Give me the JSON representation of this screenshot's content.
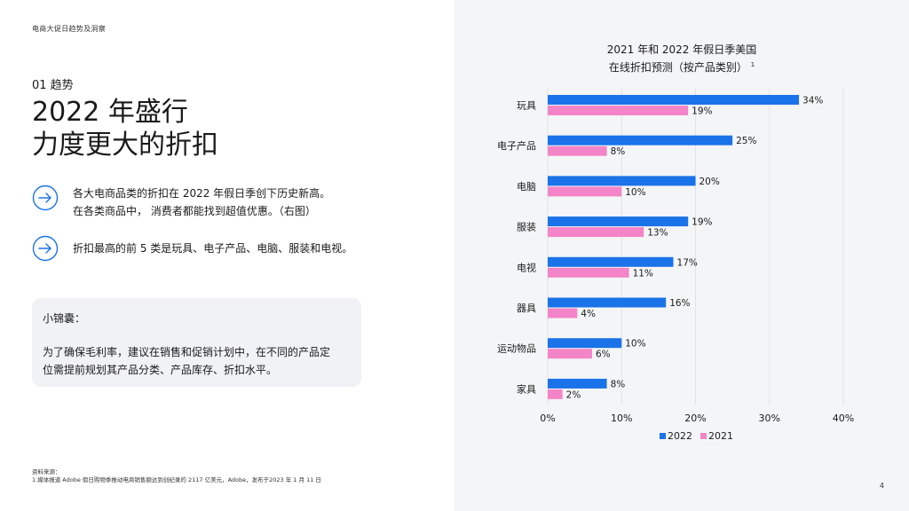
{
  "header": {
    "label": "电商大促日趋势及洞察"
  },
  "section": {
    "label": "01 趋势"
  },
  "headline": {
    "line1": "2022 年盛行",
    "line2": "力度更大的折扣"
  },
  "bullets": [
    {
      "line1": "各大电商品类的折扣在 2022 年假日季创下历史新高。",
      "line2": "在各类商品中， 消费者都能找到超值优惠。（右图）"
    },
    {
      "line1": "折扣最高的前 5 类是玩具、电子产品、电脑、服装和电视。"
    }
  ],
  "tip": {
    "title": "小锦囊：",
    "line1": "为了确保毛利率，建议在销售和促销计划中，在不同的产品定",
    "line2": "位需提前规划其产品分类、产品库存、折扣水平。"
  },
  "source": {
    "line1": "资料来源：",
    "line2": "1.媒体报道 Adobe 假日购物季推动电商销售额达到创纪录的 2117 亿美元，Adobe，发布于2023 年 1 月 11 日"
  },
  "page_number": "4",
  "colors": {
    "series_2022": "#1a73e8",
    "series_2021": "#f484c8",
    "arrow": "#1a73e8"
  },
  "chart_data": {
    "type": "bar",
    "orientation": "horizontal",
    "title_line1": "2021 年和 2022 年假日季美国",
    "title_line2": "在线折扣预测（按产品类别）",
    "title_note": "1",
    "categories": [
      "玩具",
      "电子产品",
      "电脑",
      "服装",
      "电视",
      "器具",
      "运动物品",
      "家具"
    ],
    "series": [
      {
        "name": "2022",
        "values": [
          34,
          25,
          20,
          19,
          17,
          16,
          10,
          8
        ]
      },
      {
        "name": "2021",
        "values": [
          19,
          8,
          10,
          13,
          11,
          4,
          6,
          2
        ]
      }
    ],
    "value_suffix": "%",
    "xlim": [
      0,
      40
    ],
    "xticks": [
      0,
      10,
      20,
      30,
      40
    ],
    "xtick_labels": [
      "0%",
      "10%",
      "20%",
      "30%",
      "40%"
    ],
    "legend": [
      "2022",
      "2021"
    ],
    "legend_position": "bottom"
  }
}
